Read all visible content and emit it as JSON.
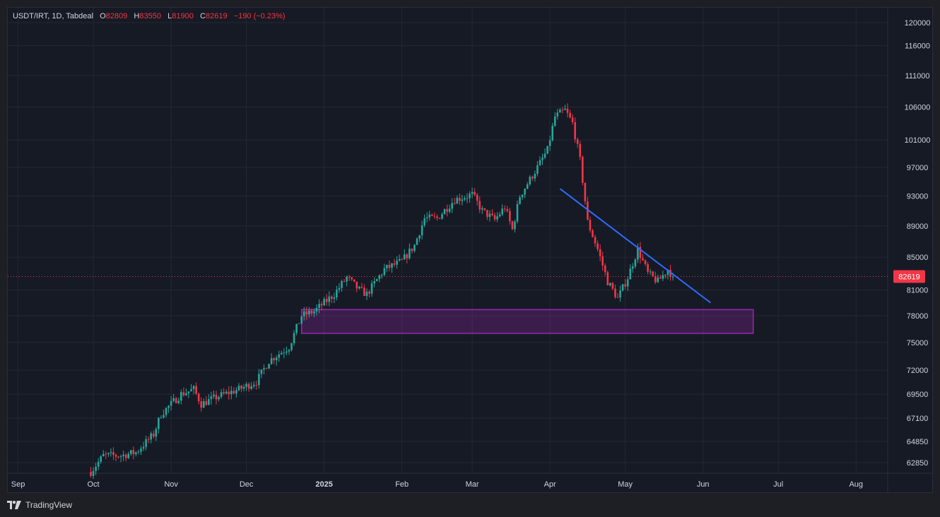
{
  "header": {
    "symbol": "USDT/IRT, 1D, Tabdeal",
    "open_label": "O",
    "open": "82809",
    "high_label": "H",
    "high": "83550",
    "low_label": "L",
    "low": "81900",
    "close_label": "C",
    "close": "82619",
    "change": "−190 (−0.23%)"
  },
  "branding": {
    "label": "TradingView"
  },
  "colors": {
    "up": "#26a69a",
    "down": "#f23645",
    "trendline": "#2f6bff",
    "zone": "#9c27b0",
    "price_tag": "#f23645"
  },
  "chart_data": {
    "type": "candlestick",
    "title": "",
    "y_axis": {
      "ticks": [
        120000,
        116000,
        111000,
        106000,
        101000,
        97000,
        93000,
        89000,
        85000,
        81000,
        78000,
        75000,
        72000,
        69500,
        67100,
        64850,
        62850
      ]
    },
    "x_axis": {
      "ticks": [
        {
          "label": "Sep",
          "date": "2024-09-01",
          "bold": false
        },
        {
          "label": "Oct",
          "date": "2024-10-01",
          "bold": false
        },
        {
          "label": "Nov",
          "date": "2024-11-01",
          "bold": false
        },
        {
          "label": "Dec",
          "date": "2024-12-01",
          "bold": false
        },
        {
          "label": "2025",
          "date": "2025-01-01",
          "bold": true
        },
        {
          "label": "Feb",
          "date": "2025-02-01",
          "bold": false
        },
        {
          "label": "Mar",
          "date": "2025-03-01",
          "bold": false
        },
        {
          "label": "Apr",
          "date": "2025-04-01",
          "bold": false
        },
        {
          "label": "May",
          "date": "2025-05-01",
          "bold": false
        },
        {
          "label": "Jun",
          "date": "2025-06-01",
          "bold": false
        },
        {
          "label": "Jul",
          "date": "2025-07-01",
          "bold": false
        },
        {
          "label": "Aug",
          "date": "2025-08-01",
          "bold": false
        }
      ]
    },
    "price_path": [
      [
        "2024-09-30",
        62000
      ],
      [
        "2024-10-05",
        63500
      ],
      [
        "2024-10-12",
        63500
      ],
      [
        "2024-10-18",
        63800
      ],
      [
        "2024-10-25",
        65500
      ],
      [
        "2024-10-28",
        67500
      ],
      [
        "2024-11-05",
        69500
      ],
      [
        "2024-11-10",
        70000
      ],
      [
        "2024-11-13",
        68500
      ],
      [
        "2024-11-20",
        69300
      ],
      [
        "2024-11-28",
        70000
      ],
      [
        "2024-12-05",
        70800
      ],
      [
        "2024-12-10",
        73000
      ],
      [
        "2024-12-18",
        74500
      ],
      [
        "2024-12-23",
        78000
      ],
      [
        "2024-12-28",
        78500
      ],
      [
        "2025-01-05",
        80500
      ],
      [
        "2025-01-10",
        82500
      ],
      [
        "2025-01-15",
        81000
      ],
      [
        "2025-01-18",
        80500
      ],
      [
        "2025-01-25",
        83500
      ],
      [
        "2025-02-01",
        84500
      ],
      [
        "2025-02-06",
        86500
      ],
      [
        "2025-02-10",
        90000
      ],
      [
        "2025-02-15",
        90000
      ],
      [
        "2025-02-22",
        92500
      ],
      [
        "2025-03-01",
        93200
      ],
      [
        "2025-03-05",
        91000
      ],
      [
        "2025-03-10",
        89800
      ],
      [
        "2025-03-14",
        91500
      ],
      [
        "2025-03-17",
        88500
      ],
      [
        "2025-03-20",
        93000
      ],
      [
        "2025-03-27",
        97000
      ],
      [
        "2025-03-31",
        99500
      ],
      [
        "2025-04-03",
        104500
      ],
      [
        "2025-04-07",
        105500
      ],
      [
        "2025-04-10",
        103500
      ],
      [
        "2025-04-13",
        98000
      ],
      [
        "2025-04-16",
        89500
      ],
      [
        "2025-04-20",
        86000
      ],
      [
        "2025-04-24",
        82000
      ],
      [
        "2025-04-28",
        80000
      ],
      [
        "2025-05-02",
        82500
      ],
      [
        "2025-05-06",
        86000
      ],
      [
        "2025-05-10",
        83000
      ],
      [
        "2025-05-14",
        82000
      ],
      [
        "2025-05-18",
        83500
      ],
      [
        "2025-05-20",
        82619
      ]
    ],
    "candles_start": "2024-09-30",
    "candles_end": "2025-05-20",
    "last_price": 82619,
    "trendline": {
      "start": {
        "date": "2025-04-05",
        "price": 94000
      },
      "end": {
        "date": "2025-06-04",
        "price": 79500
      }
    },
    "zone": {
      "start_date": "2024-12-23",
      "end_date": "2025-06-21",
      "top": 78700,
      "bottom": 76000
    }
  }
}
